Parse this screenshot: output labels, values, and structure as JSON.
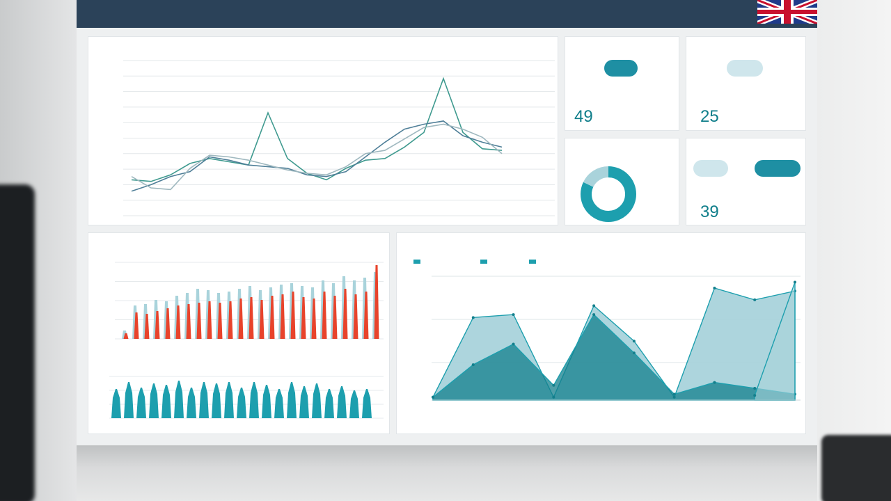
{
  "header": {
    "app_title": "",
    "nav": [
      "",
      "",
      "",
      "",
      "",
      "",
      "",
      "",
      ""
    ]
  },
  "panels": {
    "line_chart": {
      "title": "",
      "y_ticks": [
        "",
        "",
        "",
        "",
        "",
        "",
        "",
        "",
        "",
        "",
        ""
      ]
    },
    "kpi_one": {
      "title": "",
      "pill_left": "",
      "pill_active": "",
      "pill_right": "",
      "mid_left": "",
      "mid_value": "",
      "mid_right": "",
      "big_value": "49",
      "unit": "",
      "change": ""
    },
    "kpi_two": {
      "title": "",
      "pill_left": "",
      "pill_active": "",
      "pill_right": "",
      "mid_left": "",
      "mid_value": "",
      "mid_right": "",
      "big_value": "25",
      "unit": "",
      "change": ""
    },
    "donut": {
      "title": "",
      "labels": [
        "",
        "",
        ""
      ]
    },
    "kpi_three": {
      "title": "",
      "pill_left": "",
      "pill_mid": "",
      "pill_active": "",
      "mid_left": "",
      "mid_value": "",
      "mid_right": "",
      "big_value": "39",
      "unit": "",
      "change": ""
    },
    "bar_chart": {
      "title": "",
      "y_ticks": [
        "",
        "",
        "",
        "",
        ""
      ],
      "x_ticks": [
        "",
        "",
        "",
        "",
        "",
        ""
      ]
    },
    "area_chart": {
      "title": "",
      "legend": [
        "",
        "",
        ""
      ],
      "y_ticks": [
        "",
        "",
        ""
      ],
      "x_ticks": [
        "",
        "",
        "",
        "",
        "",
        "",
        ""
      ]
    }
  },
  "colors": {
    "topbar": "#2b4259",
    "teal": "#1d9fae",
    "teal_dark": "#137f8c",
    "teal_light": "#a9d3db",
    "red": "#e8432b",
    "line_green": "#3f9a8f",
    "line_blue": "#4f7f98",
    "line_gray": "#9fb8bf"
  },
  "chart_data": [
    {
      "type": "line",
      "x": [
        1,
        2,
        3,
        4,
        5,
        6,
        7,
        8,
        9,
        10,
        11,
        12,
        13,
        14,
        15,
        16,
        17,
        18,
        19,
        20
      ],
      "series": [
        {
          "values": [
            3.2,
            3.1,
            3.5,
            4.2,
            4.5,
            4.3,
            4.1,
            7.3,
            4.5,
            3.6,
            3.2,
            3.9,
            4.4,
            4.5,
            5.2,
            6.1,
            9.4,
            6.1,
            5.1,
            5.0
          ]
        },
        {
          "values": [
            2.5,
            2.9,
            3.4,
            3.7,
            4.6,
            4.4,
            4.1,
            4.0,
            3.9,
            3.5,
            3.4,
            3.7,
            4.6,
            5.5,
            6.3,
            6.6,
            6.8,
            5.9,
            5.5,
            5.2
          ]
        },
        {
          "values": [
            3.4,
            2.7,
            2.6,
            3.9,
            4.7,
            4.6,
            4.4,
            4.1,
            3.8,
            3.6,
            3.5,
            4.0,
            4.8,
            5.0,
            5.7,
            6.4,
            6.6,
            6.3,
            5.8,
            4.8
          ]
        }
      ]
    },
    {
      "type": "pie",
      "values": [
        82,
        18
      ]
    },
    {
      "type": "bar",
      "series": [
        {
          "values": [
            0.6,
            2.4,
            2.5,
            2.8,
            2.7,
            3.1,
            3.3,
            3.6,
            3.5,
            3.3,
            3.4,
            3.6,
            3.8,
            3.5,
            3.7,
            3.9,
            4.0,
            3.8,
            3.7,
            4.2,
            4.0,
            4.5,
            4.2,
            4.4,
            4.8
          ]
        },
        {
          "values": [
            0.4,
            1.9,
            1.8,
            2.0,
            2.2,
            2.4,
            2.5,
            2.6,
            2.7,
            2.6,
            2.7,
            2.9,
            3.0,
            2.8,
            3.1,
            3.2,
            3.4,
            3.0,
            2.9,
            3.4,
            3.1,
            3.6,
            3.2,
            3.4,
            5.3
          ]
        }
      ]
    },
    {
      "type": "bar",
      "values": [
        2.1,
        2.6,
        2.2,
        2.5,
        2.4,
        2.7,
        2.2,
        2.6,
        2.5,
        2.6,
        2.2,
        2.6,
        2.4,
        2.1,
        2.6,
        2.3,
        2.5,
        2.1,
        2.3,
        2.0,
        2.1
      ]
    },
    {
      "type": "area",
      "x": [
        0,
        1,
        2,
        3,
        4,
        5,
        6,
        7,
        8,
        9
      ],
      "series": [
        {
          "values": [
            0.05,
            1.4,
            1.45,
            0.05,
            1.6,
            1.0,
            0.05,
            1.9,
            1.7,
            1.85
          ]
        },
        {
          "values": [
            0.05,
            0.6,
            0.95,
            0.25,
            1.45,
            0.8,
            0.1,
            0.3,
            0.2,
            0.1
          ]
        },
        {
          "values": [
            null,
            null,
            null,
            null,
            null,
            null,
            null,
            null,
            0.08,
            2.0
          ]
        }
      ]
    }
  ]
}
